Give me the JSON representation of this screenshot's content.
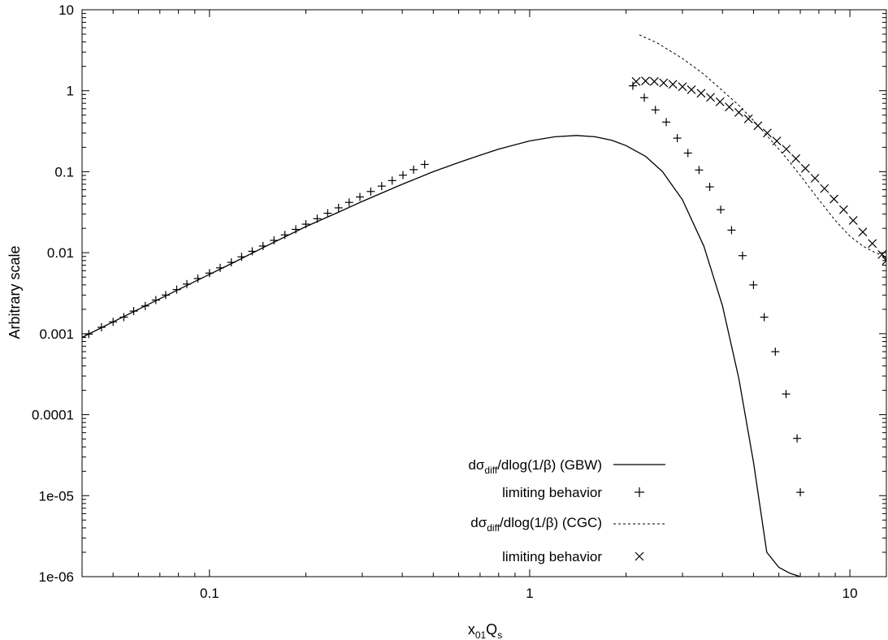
{
  "chart_data": {
    "type": "line",
    "title": "",
    "xlabel": {
      "main": "x",
      "sub1": "01",
      "mid": "Q",
      "sub2": "s"
    },
    "ylabel": "Arbitrary scale",
    "xscale": "log",
    "yscale": "log",
    "xlim": [
      0.04,
      13
    ],
    "ylim": [
      1e-06,
      10
    ],
    "x_ticks": [
      0.1,
      1,
      10
    ],
    "x_tick_labels": [
      "0.1",
      "1",
      "10"
    ],
    "y_ticks": [
      1e-06,
      1e-05,
      0.0001,
      0.001,
      0.01,
      0.1,
      1,
      10
    ],
    "y_tick_labels": [
      "1e-06",
      "1e-05",
      "0.0001",
      "0.001",
      "0.01",
      "0.1",
      "1",
      "10"
    ],
    "grid": false,
    "legend_position": "bottom-center",
    "series": [
      {
        "name_parts": {
          "pre": "dσ",
          "sub": "diff",
          "post": "/dlog(1/β) (GBW)"
        },
        "style": "solid",
        "color": "#000000",
        "x": [
          0.04,
          0.05,
          0.06,
          0.07,
          0.08,
          0.1,
          0.12,
          0.15,
          0.2,
          0.25,
          0.3,
          0.4,
          0.5,
          0.6,
          0.7,
          0.8,
          0.9,
          1.0,
          1.2,
          1.4,
          1.6,
          1.8,
          2.0,
          2.3,
          2.6,
          3.0,
          3.5,
          4.0,
          4.5,
          5.0,
          5.5,
          6.0,
          6.5,
          7.0
        ],
        "y": [
          0.0009,
          0.0014,
          0.002,
          0.0027,
          0.0035,
          0.0054,
          0.0077,
          0.012,
          0.021,
          0.031,
          0.043,
          0.07,
          0.1,
          0.13,
          0.16,
          0.19,
          0.215,
          0.24,
          0.27,
          0.28,
          0.27,
          0.245,
          0.21,
          0.155,
          0.1,
          0.045,
          0.012,
          0.0022,
          0.00028,
          2.6e-05,
          2e-06,
          1.3e-06,
          1.1e-06,
          1e-06
        ]
      },
      {
        "name": "limiting behavior",
        "style": "plus",
        "color": "#000000",
        "x": [
          0.04,
          0.042,
          0.046,
          0.05,
          0.054,
          0.058,
          0.063,
          0.068,
          0.073,
          0.079,
          0.085,
          0.092,
          0.1,
          0.108,
          0.117,
          0.126,
          0.136,
          0.147,
          0.159,
          0.172,
          0.186,
          0.2,
          0.217,
          0.234,
          0.253,
          0.273,
          0.295,
          0.319,
          0.345,
          0.372,
          0.402,
          0.434,
          0.47,
          2.1,
          2.28,
          2.47,
          2.67,
          2.89,
          3.12,
          3.38,
          3.65,
          3.95,
          4.27,
          4.62,
          5.0,
          5.4,
          5.85,
          6.32,
          6.84,
          7.0
        ],
        "y": [
          0.0009,
          0.00099,
          0.0012,
          0.0014,
          0.0016,
          0.0019,
          0.0022,
          0.0026,
          0.003,
          0.0035,
          0.0041,
          0.0048,
          0.0056,
          0.0065,
          0.0076,
          0.0089,
          0.0104,
          0.0121,
          0.0142,
          0.0166,
          0.0194,
          0.0225,
          0.0263,
          0.0307,
          0.0358,
          0.0418,
          0.0488,
          0.057,
          0.0665,
          0.0777,
          0.0907,
          0.106,
          0.123,
          1.15,
          0.82,
          0.58,
          0.41,
          0.26,
          0.17,
          0.105,
          0.065,
          0.034,
          0.019,
          0.0092,
          0.004,
          0.0016,
          0.0006,
          0.00018,
          5.1e-05,
          1.1e-05
        ]
      },
      {
        "name_parts": {
          "pre": "dσ",
          "sub": "diff",
          "post": "/dlog(1/β) (CGC)"
        },
        "style": "dashed",
        "color": "#000000",
        "x": [
          2.2,
          2.5,
          3.0,
          3.5,
          4.0,
          4.5,
          5.0,
          5.5,
          6.0,
          6.5,
          7.0,
          8.0,
          9.0,
          10.0,
          11.0,
          12.0,
          13.0
        ],
        "y": [
          4.9,
          3.9,
          2.5,
          1.6,
          1.0,
          0.66,
          0.43,
          0.28,
          0.19,
          0.13,
          0.09,
          0.045,
          0.025,
          0.016,
          0.012,
          0.01,
          0.009
        ]
      },
      {
        "name": "limiting behavior",
        "style": "cross",
        "color": "#000000",
        "x": [
          2.15,
          2.3,
          2.45,
          2.62,
          2.8,
          3.0,
          3.2,
          3.43,
          3.67,
          3.93,
          4.2,
          4.5,
          4.82,
          5.16,
          5.52,
          5.91,
          6.33,
          6.78,
          7.26,
          7.78,
          8.33,
          8.92,
          9.56,
          10.24,
          10.97,
          11.75,
          12.6,
          13.0
        ],
        "y": [
          1.3,
          1.32,
          1.3,
          1.25,
          1.2,
          1.12,
          1.03,
          0.93,
          0.83,
          0.73,
          0.63,
          0.54,
          0.45,
          0.37,
          0.3,
          0.24,
          0.19,
          0.145,
          0.11,
          0.083,
          0.062,
          0.046,
          0.034,
          0.025,
          0.018,
          0.013,
          0.0095,
          0.008
        ]
      }
    ]
  }
}
